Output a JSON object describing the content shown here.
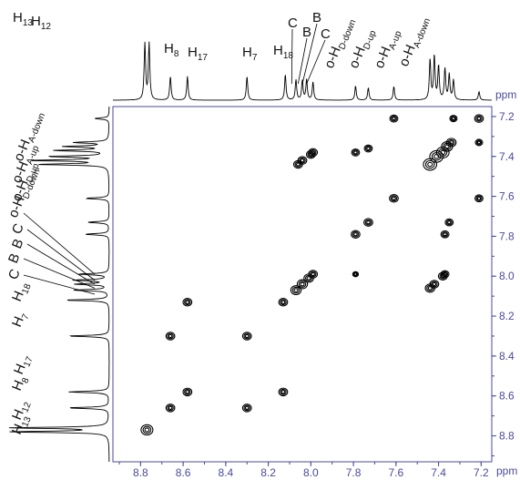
{
  "chart_data": {
    "type": "scatter",
    "subtype": "2D NMR contour plot (COSY)",
    "x_unit": "ppm",
    "y_unit": "ppm",
    "x_range": [
      8.93,
      7.15
    ],
    "y_range": [
      7.15,
      8.93
    ],
    "x_ticks": [
      "8.8",
      "8.6",
      "8.4",
      "8.2",
      "8.0",
      "7.8",
      "7.6",
      "7.4",
      "7.2"
    ],
    "y_ticks": [
      "7.2",
      "7.4",
      "7.6",
      "7.8",
      "8.0",
      "8.2",
      "8.4",
      "8.6",
      "8.8"
    ],
    "peak_labels": [
      {
        "base": "H",
        "sub": "13",
        "ppm": 8.78
      },
      {
        "base": "H",
        "sub": "12",
        "ppm": 8.76
      },
      {
        "base": "H",
        "sub": "8",
        "ppm": 8.66
      },
      {
        "base": "H",
        "sub": "17",
        "ppm": 8.58
      },
      {
        "base": "H",
        "sub": "7",
        "ppm": 8.3
      },
      {
        "base": "H",
        "sub": "18",
        "ppm": 8.13
      },
      {
        "base": "C",
        "sub": "",
        "ppm": 8.09
      },
      {
        "base": "B",
        "sub": "",
        "ppm": 8.06
      },
      {
        "base": "B",
        "sub": "",
        "ppm": 8.04
      },
      {
        "base": "C",
        "sub": "",
        "ppm": 8.02
      },
      {
        "base": "o-H",
        "sub": "D-down",
        "ppm": 7.99
      },
      {
        "base": "o-H",
        "sub": "D-up",
        "ppm": 7.79
      },
      {
        "base": "o-H",
        "sub": "A-up",
        "ppm": 7.73
      },
      {
        "base": "o-H",
        "sub": "A-down",
        "ppm": 7.61
      }
    ],
    "spectrum_peaks": [
      {
        "ppm": 8.78,
        "height": 1.0
      },
      {
        "ppm": 8.76,
        "height": 1.0
      },
      {
        "ppm": 8.66,
        "height": 0.42
      },
      {
        "ppm": 8.58,
        "height": 0.42
      },
      {
        "ppm": 8.3,
        "height": 0.42
      },
      {
        "ppm": 8.12,
        "height": 0.45
      },
      {
        "ppm": 8.07,
        "height": 0.36
      },
      {
        "ppm": 8.04,
        "height": 0.34
      },
      {
        "ppm": 8.02,
        "height": 0.36
      },
      {
        "ppm": 7.99,
        "height": 0.32
      },
      {
        "ppm": 7.79,
        "height": 0.25
      },
      {
        "ppm": 7.73,
        "height": 0.22
      },
      {
        "ppm": 7.61,
        "height": 0.24
      },
      {
        "ppm": 7.44,
        "height": 0.72
      },
      {
        "ppm": 7.42,
        "height": 0.78
      },
      {
        "ppm": 7.4,
        "height": 0.6
      },
      {
        "ppm": 7.37,
        "height": 0.55
      },
      {
        "ppm": 7.35,
        "height": 0.45
      },
      {
        "ppm": 7.33,
        "height": 0.35
      },
      {
        "ppm": 7.21,
        "height": 0.15
      }
    ],
    "cross_peaks": [
      {
        "x": 8.77,
        "y": 8.77,
        "size": 1.4
      },
      {
        "x": 8.66,
        "y": 8.66,
        "size": 1.0
      },
      {
        "x": 8.58,
        "y": 8.58,
        "size": 1.0
      },
      {
        "x": 8.3,
        "y": 8.3,
        "size": 1.0
      },
      {
        "x": 8.13,
        "y": 8.13,
        "size": 1.0
      },
      {
        "x": 8.66,
        "y": 8.3,
        "size": 1.0
      },
      {
        "x": 8.3,
        "y": 8.66,
        "size": 1.0
      },
      {
        "x": 8.58,
        "y": 8.13,
        "size": 1.0
      },
      {
        "x": 8.13,
        "y": 8.58,
        "size": 1.0
      },
      {
        "x": 8.07,
        "y": 8.07,
        "size": 1.2
      },
      {
        "x": 8.04,
        "y": 8.04,
        "size": 1.2
      },
      {
        "x": 8.01,
        "y": 8.01,
        "size": 1.1
      },
      {
        "x": 7.99,
        "y": 7.99,
        "size": 1.0
      },
      {
        "x": 8.06,
        "y": 7.44,
        "size": 1.0
      },
      {
        "x": 8.04,
        "y": 7.42,
        "size": 1.0
      },
      {
        "x": 8.0,
        "y": 7.39,
        "size": 1.0
      },
      {
        "x": 7.99,
        "y": 7.38,
        "size": 1.0
      },
      {
        "x": 7.79,
        "y": 7.79,
        "size": 1.0
      },
      {
        "x": 7.73,
        "y": 7.73,
        "size": 1.0
      },
      {
        "x": 7.79,
        "y": 7.38,
        "size": 0.9
      },
      {
        "x": 7.73,
        "y": 7.36,
        "size": 0.9
      },
      {
        "x": 7.61,
        "y": 7.61,
        "size": 1.0
      },
      {
        "x": 7.61,
        "y": 7.21,
        "size": 0.9
      },
      {
        "x": 7.79,
        "y": 7.99,
        "size": 0.6
      },
      {
        "x": 7.44,
        "y": 7.44,
        "size": 1.6
      },
      {
        "x": 7.41,
        "y": 7.4,
        "size": 1.6
      },
      {
        "x": 7.38,
        "y": 7.38,
        "size": 1.5
      },
      {
        "x": 7.36,
        "y": 7.35,
        "size": 1.3
      },
      {
        "x": 7.34,
        "y": 7.33,
        "size": 1.1
      },
      {
        "x": 7.44,
        "y": 8.06,
        "size": 1.1
      },
      {
        "x": 7.42,
        "y": 8.04,
        "size": 1.0
      },
      {
        "x": 7.38,
        "y": 8.0,
        "size": 1.0
      },
      {
        "x": 7.37,
        "y": 7.99,
        "size": 0.9
      },
      {
        "x": 7.37,
        "y": 7.79,
        "size": 0.9
      },
      {
        "x": 7.35,
        "y": 7.73,
        "size": 0.9
      },
      {
        "x": 7.21,
        "y": 7.61,
        "size": 0.9
      },
      {
        "x": 7.33,
        "y": 7.21,
        "size": 0.8
      },
      {
        "x": 7.21,
        "y": 7.21,
        "size": 1.0
      },
      {
        "x": 7.21,
        "y": 7.33,
        "size": 0.8
      }
    ],
    "grid": false,
    "legend": "none",
    "colors": {
      "axis": "#4a4a9a",
      "contour": "#000000",
      "spectrum": "#000000"
    }
  }
}
